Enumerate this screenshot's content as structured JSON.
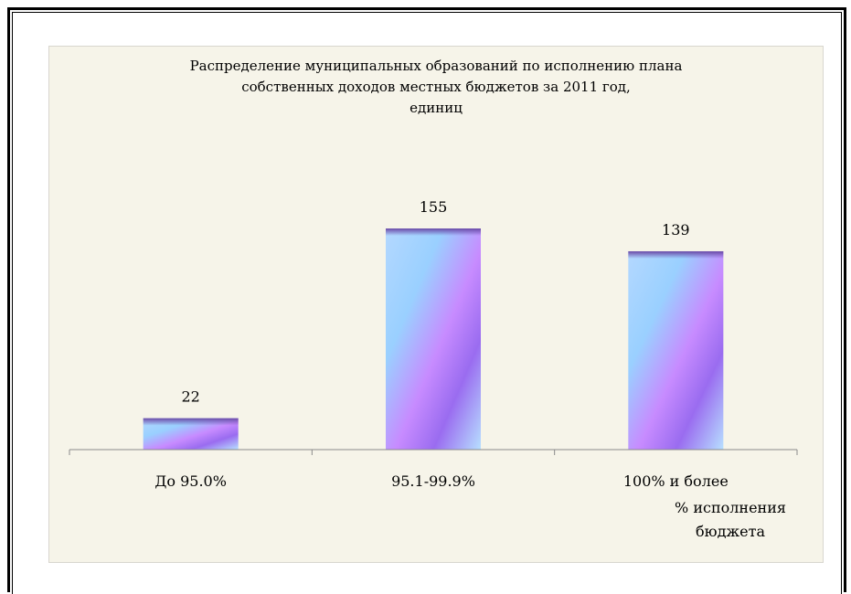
{
  "chart_data": {
    "type": "bar",
    "title_lines": [
      "Распределение муниципальных образований по исполнению плана",
      "собственных доходов местных бюджетов за 2011 год,",
      "единиц"
    ],
    "categories": [
      "До 95.0%",
      "95.1-99.9%",
      "100% и более"
    ],
    "values": [
      22,
      155,
      139
    ],
    "data_labels": [
      "22",
      "155",
      "139"
    ],
    "xlabel_lines": [
      "% исполнения",
      "бюджета"
    ],
    "ylabel": "",
    "ylim": [
      0,
      160
    ],
    "grid": false,
    "legend": "none"
  }
}
